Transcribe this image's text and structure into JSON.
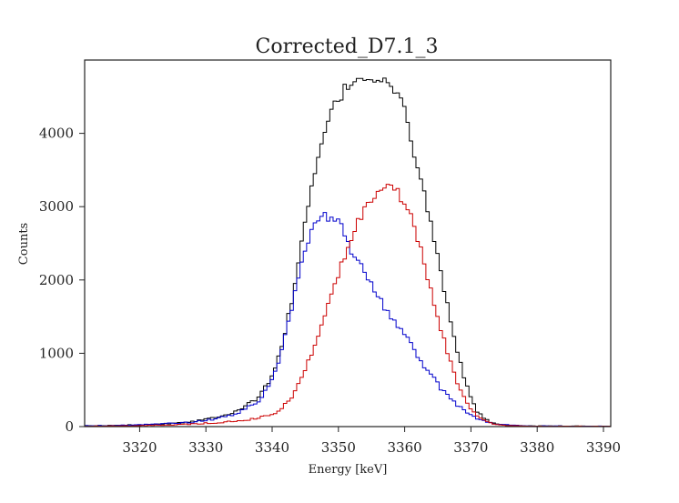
{
  "chart_data": {
    "type": "line",
    "style": "step-histogram",
    "title": "Corrected_D7.1_3",
    "xlabel": "Energy [keV]",
    "ylabel": "Counts",
    "xlim": [
      3311.7,
      3391.1
    ],
    "ylim": [
      0,
      5000
    ],
    "xticks": [
      3320,
      3330,
      3340,
      3350,
      3360,
      3370,
      3380,
      3390
    ],
    "yticks": [
      0,
      1000,
      2000,
      3000,
      4000
    ],
    "grid": false,
    "legend": "none",
    "bin_width": 0.5,
    "series": [
      {
        "color": "#000000",
        "x": [
          3312,
          3316,
          3320,
          3324,
          3328,
          3331,
          3334,
          3336,
          3338,
          3340,
          3341,
          3342,
          3343,
          3344,
          3345,
          3346,
          3347,
          3348,
          3349,
          3350,
          3351,
          3352,
          3353,
          3354,
          3355,
          3356,
          3357,
          3358,
          3359,
          3360,
          3361,
          3362,
          3363,
          3364,
          3365,
          3366,
          3367,
          3368,
          3369,
          3370,
          3371,
          3372,
          3373,
          3374,
          3376,
          3378,
          3380,
          3384,
          3388,
          3391
        ],
        "y": [
          10,
          15,
          25,
          40,
          70,
          120,
          190,
          280,
          400,
          700,
          950,
          1300,
          1750,
          2250,
          2800,
          3250,
          3650,
          4050,
          4300,
          4450,
          4600,
          4700,
          4750,
          4780,
          4760,
          4730,
          4700,
          4650,
          4500,
          4300,
          3900,
          3550,
          3150,
          2750,
          2300,
          1850,
          1450,
          1000,
          650,
          380,
          200,
          110,
          55,
          30,
          15,
          10,
          8,
          8,
          5,
          5
        ]
      },
      {
        "color": "#0000cc",
        "x": [
          3312,
          3316,
          3320,
          3324,
          3328,
          3331,
          3334,
          3336,
          3338,
          3340,
          3341,
          3342,
          3343,
          3344,
          3345,
          3346,
          3347,
          3348,
          3349,
          3350,
          3351,
          3352,
          3353,
          3354,
          3355,
          3356,
          3357,
          3358,
          3359,
          3360,
          3361,
          3362,
          3363,
          3364,
          3365,
          3366,
          3367,
          3368,
          3369,
          3370,
          3371,
          3372,
          3373,
          3374,
          3376,
          3378,
          3380,
          3384,
          3388,
          3391
        ],
        "y": [
          10,
          15,
          25,
          40,
          60,
          100,
          160,
          240,
          350,
          650,
          900,
          1250,
          1650,
          2050,
          2400,
          2650,
          2820,
          2880,
          2840,
          2780,
          2650,
          2400,
          2250,
          2100,
          1950,
          1780,
          1620,
          1500,
          1350,
          1250,
          1100,
          950,
          820,
          700,
          580,
          460,
          370,
          290,
          220,
          160,
          110,
          75,
          50,
          35,
          20,
          12,
          8,
          6,
          5,
          5
        ]
      },
      {
        "color": "#cc0000",
        "x": [
          3312,
          3316,
          3320,
          3324,
          3328,
          3331,
          3334,
          3336,
          3338,
          3340,
          3341,
          3342,
          3343,
          3344,
          3345,
          3346,
          3347,
          3348,
          3349,
          3350,
          3351,
          3352,
          3353,
          3354,
          3355,
          3356,
          3357,
          3358,
          3359,
          3360,
          3361,
          3362,
          3363,
          3364,
          3365,
          3366,
          3367,
          3368,
          3369,
          3370,
          3371,
          3372,
          3373,
          3374,
          3376,
          3378,
          3380,
          3384,
          3388,
          3391
        ],
        "y": [
          5,
          8,
          12,
          20,
          35,
          50,
          70,
          90,
          120,
          160,
          220,
          300,
          420,
          580,
          780,
          1000,
          1250,
          1500,
          1800,
          2100,
          2350,
          2600,
          2800,
          2950,
          3100,
          3250,
          3280,
          3300,
          3200,
          3050,
          2850,
          2550,
          2200,
          1850,
          1500,
          1150,
          850,
          580,
          380,
          230,
          140,
          80,
          45,
          25,
          12,
          8,
          5,
          5,
          5,
          5
        ]
      }
    ]
  }
}
